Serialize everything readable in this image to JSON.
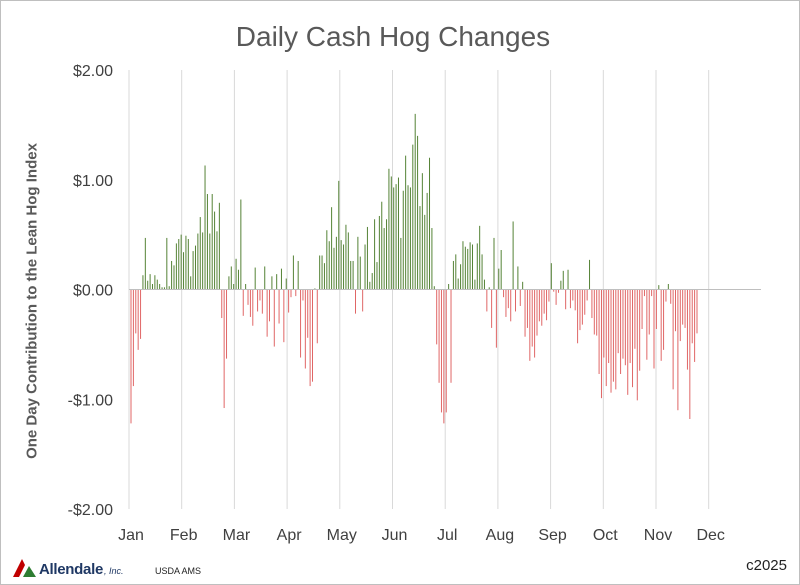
{
  "chart_data": {
    "type": "bar",
    "title": "Daily Cash Hog Changes",
    "ylabel": "One Day Contribution to the Lean Hog Index",
    "xlabel": "",
    "ylim": [
      -2,
      2
    ],
    "yticks": [
      {
        "value": 2,
        "label": "$2.00"
      },
      {
        "value": 1,
        "label": "$1.00"
      },
      {
        "value": 0,
        "label": "$0.00"
      },
      {
        "value": -1,
        "label": "-$1.00"
      },
      {
        "value": -2,
        "label": "-$2.00"
      }
    ],
    "months": [
      "Jan",
      "Feb",
      "Mar",
      "Apr",
      "May",
      "Jun",
      "Jul",
      "Aug",
      "Sep",
      "Oct",
      "Nov",
      "Dec"
    ],
    "grid": "vertical",
    "colors": {
      "positive": "#548235",
      "negative": "#e06666",
      "grid": "#d9d9d9",
      "axis": "#bfbfbf"
    },
    "values": [
      -1.22,
      -0.88,
      -0.4,
      -0.55,
      -0.45,
      0.13,
      0.47,
      0.08,
      0.14,
      0.05,
      0.13,
      0.09,
      0.05,
      0.02,
      0.02,
      0.47,
      0.03,
      0.26,
      0.22,
      0.42,
      0.46,
      0.5,
      0.34,
      0.49,
      0.46,
      0.12,
      0.35,
      0.4,
      0.51,
      0.66,
      0.52,
      1.13,
      0.87,
      0.51,
      0.87,
      0.71,
      0.53,
      0.79,
      -0.26,
      -1.08,
      -0.63,
      0.12,
      0.21,
      0.05,
      0.28,
      0.18,
      0.82,
      -0.24,
      0.05,
      -0.14,
      -0.25,
      -0.33,
      0.2,
      -0.2,
      -0.1,
      -0.22,
      0.21,
      -0.43,
      -0.29,
      0.12,
      -0.52,
      0.14,
      -0.31,
      0.19,
      -0.48,
      0.1,
      -0.21,
      -0.07,
      0.31,
      -0.06,
      0.26,
      -0.62,
      -0.1,
      -0.72,
      -0.44,
      -0.88,
      -0.84,
      0.01,
      -0.49,
      0.31,
      0.31,
      0.24,
      0.54,
      0.44,
      0.75,
      0.38,
      0.48,
      0.99,
      0.45,
      0.41,
      0.59,
      0.52,
      0.26,
      0.26,
      -0.22,
      0.48,
      0.3,
      -0.2,
      0.41,
      0.57,
      0.07,
      0.15,
      0.64,
      0.25,
      0.67,
      0.8,
      0.56,
      0.64,
      1.1,
      1.03,
      0.93,
      0.96,
      1.02,
      0.47,
      0.9,
      1.22,
      0.95,
      0.93,
      1.32,
      1.6,
      1.4,
      0.76,
      1.06,
      0.68,
      0.88,
      1.2,
      0.56,
      0.03,
      -0.5,
      -0.85,
      -1.12,
      -1.22,
      -1.12,
      0.05,
      -0.85,
      0.26,
      0.32,
      0.1,
      0.23,
      0.44,
      0.39,
      0.37,
      0.43,
      0.41,
      0.09,
      0.42,
      0.58,
      0.32,
      0.09,
      -0.2,
      0.02,
      -0.35,
      0.47,
      -0.53,
      0.19,
      0.36,
      -0.07,
      -0.25,
      -0.17,
      -0.29,
      0.62,
      -0.2,
      0.21,
      -0.15,
      0.07,
      -0.43,
      -0.35,
      -0.65,
      -0.52,
      -0.62,
      -0.42,
      -0.29,
      -0.33,
      -0.22,
      -0.28,
      -0.11,
      0.24,
      -0.02,
      -0.14,
      -0.03,
      0.08,
      0.17,
      -0.18,
      0.18,
      -0.17,
      -0.1,
      -0.19,
      -0.49,
      -0.37,
      -0.32,
      -0.23,
      -0.1,
      0.27,
      -0.26,
      -0.41,
      -0.42,
      -0.77,
      -0.99,
      -0.62,
      -0.88,
      -0.67,
      -0.94,
      -0.84,
      -0.91,
      -0.58,
      -0.77,
      -0.63,
      -0.69,
      -0.96,
      -0.67,
      -0.89,
      -0.54,
      -1.01,
      -0.74,
      -0.36,
      -0.06,
      -0.64,
      -0.41,
      -0.06,
      -0.72,
      -0.36,
      0.04,
      -0.65,
      -0.55,
      -0.11,
      0.05,
      -0.13,
      -0.91,
      -0.38,
      -1.1,
      -0.47,
      -0.32,
      -0.35,
      -0.73,
      -1.18,
      -0.49,
      -0.66,
      -0.4
    ]
  },
  "footer": {
    "logo_text": "Allendale",
    "logo_suffix": ", Inc.",
    "source": "USDA AMS",
    "copyright": "c2025"
  }
}
